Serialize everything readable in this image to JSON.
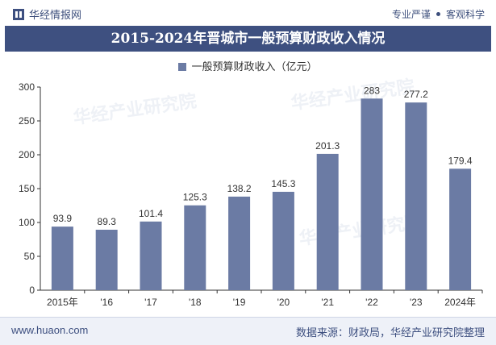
{
  "header": {
    "brand": "华经情报网",
    "slogan_left": "专业严谨",
    "slogan_right": "客观科学"
  },
  "footer": {
    "site": "www.huaon.com",
    "source": "数据来源：财政局，华经产业研究院整理"
  },
  "watermarks": [
    "华经产业研究院",
    "华经产业研究院",
    "华经产业研究院"
  ],
  "colors": {
    "bar": "#6b7ba4",
    "title_bg": "#3e5080",
    "accent": "#3e5080"
  },
  "chart_data": {
    "type": "bar",
    "title": "2015-2024年晋城市一般预算财政收入情况",
    "categories": [
      "2015年",
      "'16",
      "'17",
      "'18",
      "'19",
      "'20",
      "'21",
      "'22",
      "'23",
      "2024年"
    ],
    "series": [
      {
        "name": "一般预算财政收入（亿元）",
        "values": [
          93.9,
          89.3,
          101.4,
          125.3,
          138.2,
          145.3,
          201.3,
          283,
          277.2,
          179.4
        ]
      }
    ],
    "data_labels": [
      "93.9",
      "89.3",
      "101.4",
      "125.3",
      "138.2",
      "145.3",
      "201.3",
      "283",
      "277.2",
      "179.4"
    ],
    "ylim": [
      0,
      300
    ],
    "yticks": [
      0,
      50,
      100,
      150,
      200,
      250,
      300
    ],
    "grid": false,
    "legend_position": "top"
  }
}
